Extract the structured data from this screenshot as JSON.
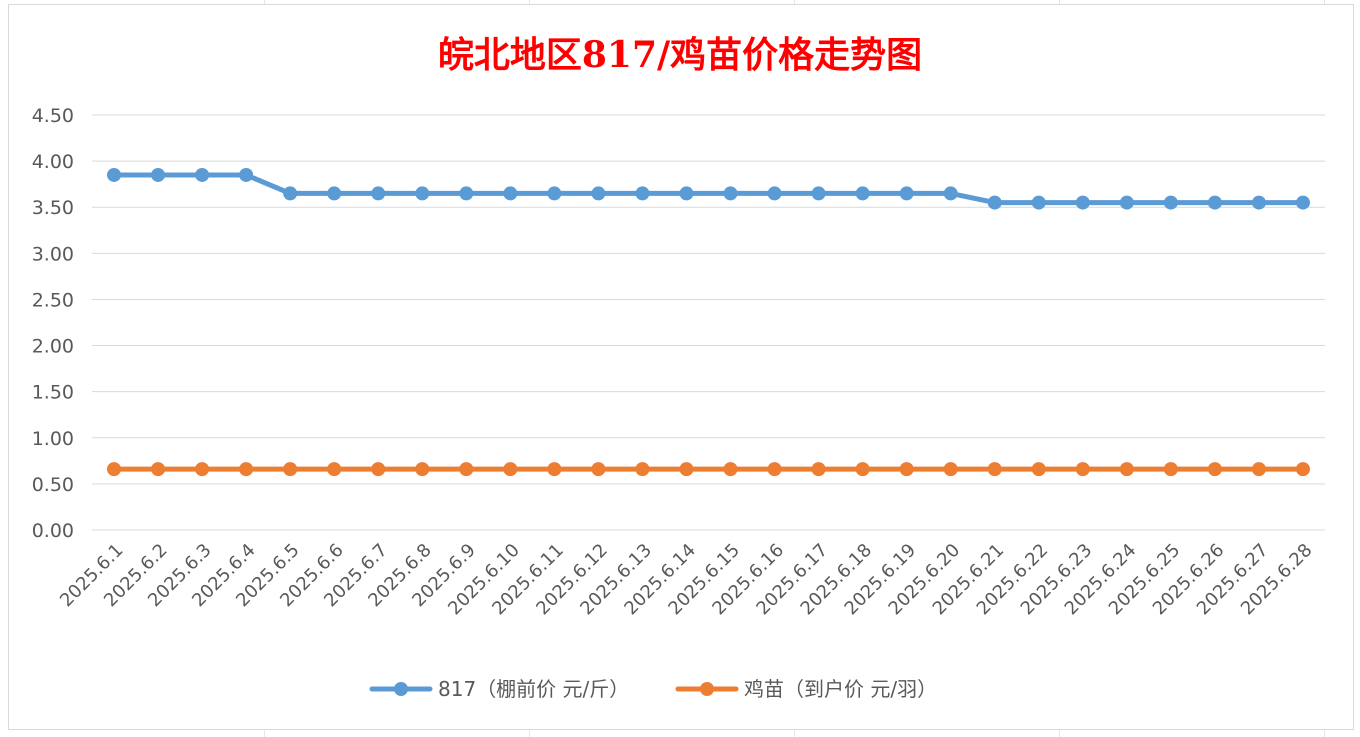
{
  "chart_data": {
    "type": "line",
    "title": "皖北地区817/鸡苗价格走势图",
    "xlabel": "",
    "ylabel": "",
    "ylim": [
      0,
      4.5
    ],
    "yticks": [
      "0.00",
      "0.50",
      "1.00",
      "1.50",
      "2.00",
      "2.50",
      "3.00",
      "3.50",
      "4.00",
      "4.50"
    ],
    "grid": true,
    "legend_position": "bottom",
    "categories": [
      "2025.6.1",
      "2025.6.2",
      "2025.6.3",
      "2025.6.4",
      "2025.6.5",
      "2025.6.6",
      "2025.6.7",
      "2025.6.8",
      "2025.6.9",
      "2025.6.10",
      "2025.6.11",
      "2025.6.12",
      "2025.6.13",
      "2025.6.14",
      "2025.6.15",
      "2025.6.16",
      "2025.6.17",
      "2025.6.18",
      "2025.6.19",
      "2025.6.20",
      "2025.6.21",
      "2025.6.22",
      "2025.6.23",
      "2025.6.24",
      "2025.6.25",
      "2025.6.26",
      "2025.6.27",
      "2025.6.28"
    ],
    "series": [
      {
        "name": "817（棚前价 元/斤）",
        "color": "#5b9bd5",
        "values": [
          3.85,
          3.85,
          3.85,
          3.85,
          3.65,
          3.65,
          3.65,
          3.65,
          3.65,
          3.65,
          3.65,
          3.65,
          3.65,
          3.65,
          3.65,
          3.65,
          3.65,
          3.65,
          3.65,
          3.65,
          3.55,
          3.55,
          3.55,
          3.55,
          3.55,
          3.55,
          3.55,
          3.55
        ]
      },
      {
        "name": "鸡苗（到户价 元/羽）",
        "color": "#ed7d31",
        "values": [
          0.66,
          0.66,
          0.66,
          0.66,
          0.66,
          0.66,
          0.66,
          0.66,
          0.66,
          0.66,
          0.66,
          0.66,
          0.66,
          0.66,
          0.66,
          0.66,
          0.66,
          0.66,
          0.66,
          0.66,
          0.66,
          0.66,
          0.66,
          0.66,
          0.66,
          0.66,
          0.66,
          0.66
        ]
      }
    ]
  }
}
